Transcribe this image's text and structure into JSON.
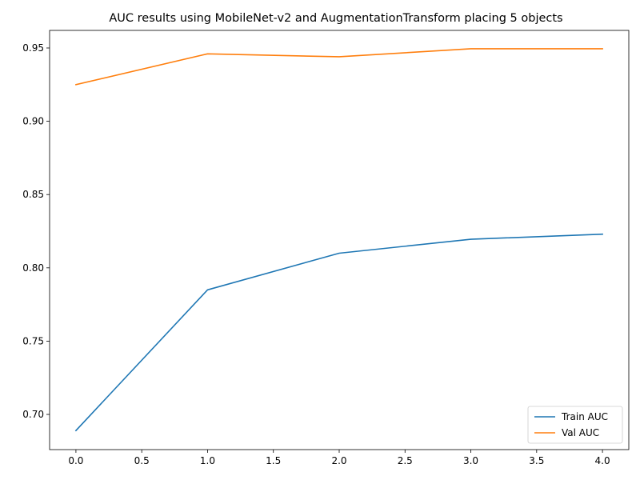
{
  "chart_data": {
    "type": "line",
    "title": "AUC results using MobileNet-v2 and AugmentationTransform placing 5 objects",
    "xlabel": "",
    "ylabel": "",
    "x": [
      0,
      1,
      2,
      3,
      4
    ],
    "xlim": [
      -0.2,
      4.2
    ],
    "ylim": [
      0.676,
      0.962
    ],
    "xticks": [
      0.0,
      0.5,
      1.0,
      1.5,
      2.0,
      2.5,
      3.0,
      3.5,
      4.0
    ],
    "xtick_labels": [
      "0.0",
      "0.5",
      "1.0",
      "1.5",
      "2.0",
      "2.5",
      "3.0",
      "3.5",
      "4.0"
    ],
    "yticks": [
      0.7,
      0.75,
      0.8,
      0.85,
      0.9,
      0.95
    ],
    "ytick_labels": [
      "0.70",
      "0.75",
      "0.80",
      "0.85",
      "0.90",
      "0.95"
    ],
    "grid": false,
    "legend_position": "bottom-right",
    "series": [
      {
        "name": "Train AUC",
        "color": "#1f77b4",
        "values": [
          0.689,
          0.785,
          0.81,
          0.8195,
          0.823
        ]
      },
      {
        "name": "Val AUC",
        "color": "#ff7f0e",
        "values": [
          0.925,
          0.946,
          0.944,
          0.9495,
          0.9495
        ]
      }
    ]
  }
}
